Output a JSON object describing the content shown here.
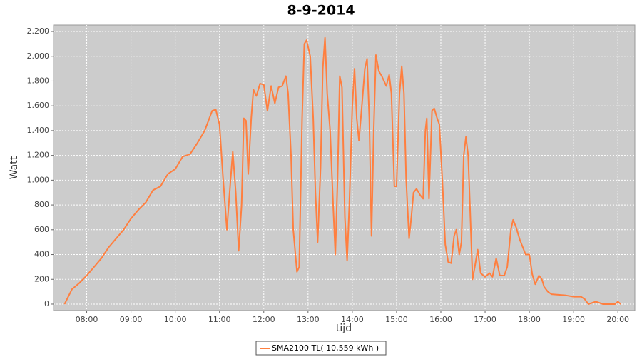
{
  "chart_data": {
    "type": "line",
    "title": "8-9-2014",
    "x_label": "tijd",
    "y_label": "Watt",
    "xlim": [
      435,
      1223
    ],
    "xticks": [
      {
        "value": 480,
        "label": "08:00"
      },
      {
        "value": 540,
        "label": "09:00"
      },
      {
        "value": 600,
        "label": "10:00"
      },
      {
        "value": 660,
        "label": "11:00"
      },
      {
        "value": 720,
        "label": "12:00"
      },
      {
        "value": 780,
        "label": "13:00"
      },
      {
        "value": 840,
        "label": "14:00"
      },
      {
        "value": 900,
        "label": "15:00"
      },
      {
        "value": 960,
        "label": "16:00"
      },
      {
        "value": 1020,
        "label": "17:00"
      },
      {
        "value": 1080,
        "label": "18:00"
      },
      {
        "value": 1140,
        "label": "19:00"
      },
      {
        "value": 1200,
        "label": "20:00"
      }
    ],
    "ylim": [
      -52,
      2252
    ],
    "yticks": [
      0,
      200,
      400,
      600,
      800,
      {
        "value": 1000,
        "label": "1.000"
      },
      {
        "value": 1200,
        "label": "1.200"
      },
      {
        "value": 1400,
        "label": "1.400"
      },
      {
        "value": 1600,
        "label": "1.600"
      },
      {
        "value": 1800,
        "label": "1.800"
      },
      {
        "value": 2000,
        "label": "2.000"
      },
      {
        "value": 2200,
        "label": "2.200"
      }
    ],
    "grid": true,
    "x": [
      450,
      460,
      470,
      480,
      490,
      500,
      510,
      520,
      530,
      540,
      550,
      560,
      570,
      580,
      590,
      600,
      610,
      620,
      630,
      640,
      650,
      655,
      660,
      665,
      670,
      675,
      678,
      682,
      686,
      690,
      693,
      696,
      699,
      703,
      706,
      710,
      715,
      720,
      725,
      730,
      735,
      740,
      745,
      750,
      753,
      757,
      760,
      765,
      768,
      772,
      775,
      778,
      783,
      787,
      790,
      793,
      797,
      800,
      803,
      806,
      810,
      814,
      817,
      820,
      823,
      826,
      830,
      833,
      836,
      840,
      843,
      846,
      849,
      853,
      857,
      860,
      863,
      866,
      869,
      872,
      876,
      880,
      886,
      890,
      893,
      897,
      900,
      904,
      907,
      910,
      913,
      917,
      920,
      923,
      927,
      932,
      936,
      939,
      941,
      944,
      948,
      951,
      955,
      958,
      962,
      966,
      970,
      974,
      978,
      981,
      985,
      988,
      991,
      994,
      997,
      1000,
      1003,
      1006,
      1010,
      1014,
      1020,
      1026,
      1030,
      1035,
      1040,
      1046,
      1050,
      1055,
      1058,
      1062,
      1067,
      1075,
      1080,
      1084,
      1088,
      1093,
      1097,
      1100,
      1105,
      1110,
      1130,
      1140,
      1150,
      1155,
      1160,
      1170,
      1180,
      1196,
      1200,
      1204
    ],
    "series": [
      {
        "name": "SMA2100 TL( 10,559 kWh )",
        "color": "#ff7f3f",
        "values": [
          0,
          120,
          170,
          230,
          300,
          370,
          460,
          530,
          600,
          690,
          760,
          820,
          920,
          950,
          1050,
          1090,
          1190,
          1210,
          1300,
          1400,
          1560,
          1570,
          1450,
          1000,
          600,
          1000,
          1230,
          900,
          430,
          800,
          1500,
          1480,
          1050,
          1500,
          1730,
          1680,
          1780,
          1770,
          1560,
          1760,
          1620,
          1750,
          1760,
          1840,
          1700,
          1200,
          600,
          260,
          300,
          1500,
          2100,
          2130,
          2000,
          1500,
          900,
          500,
          1100,
          1900,
          2150,
          1700,
          1400,
          800,
          400,
          1000,
          1840,
          1750,
          700,
          350,
          800,
          1600,
          1900,
          1500,
          1320,
          1600,
          1900,
          1980,
          1500,
          550,
          1400,
          2010,
          1880,
          1840,
          1760,
          1850,
          1700,
          950,
          950,
          1700,
          1920,
          1700,
          1000,
          530,
          700,
          900,
          930,
          880,
          850,
          1400,
          1500,
          850,
          1560,
          1580,
          1500,
          1450,
          1000,
          480,
          340,
          330,
          550,
          600,
          400,
          500,
          1200,
          1350,
          1200,
          700,
          200,
          300,
          440,
          250,
          220,
          250,
          220,
          370,
          230,
          230,
          300,
          600,
          680,
          620,
          520,
          400,
          400,
          240,
          160,
          230,
          200,
          140,
          100,
          80,
          70,
          60,
          60,
          40,
          0,
          20,
          0,
          0,
          20,
          0
        ]
      }
    ]
  }
}
